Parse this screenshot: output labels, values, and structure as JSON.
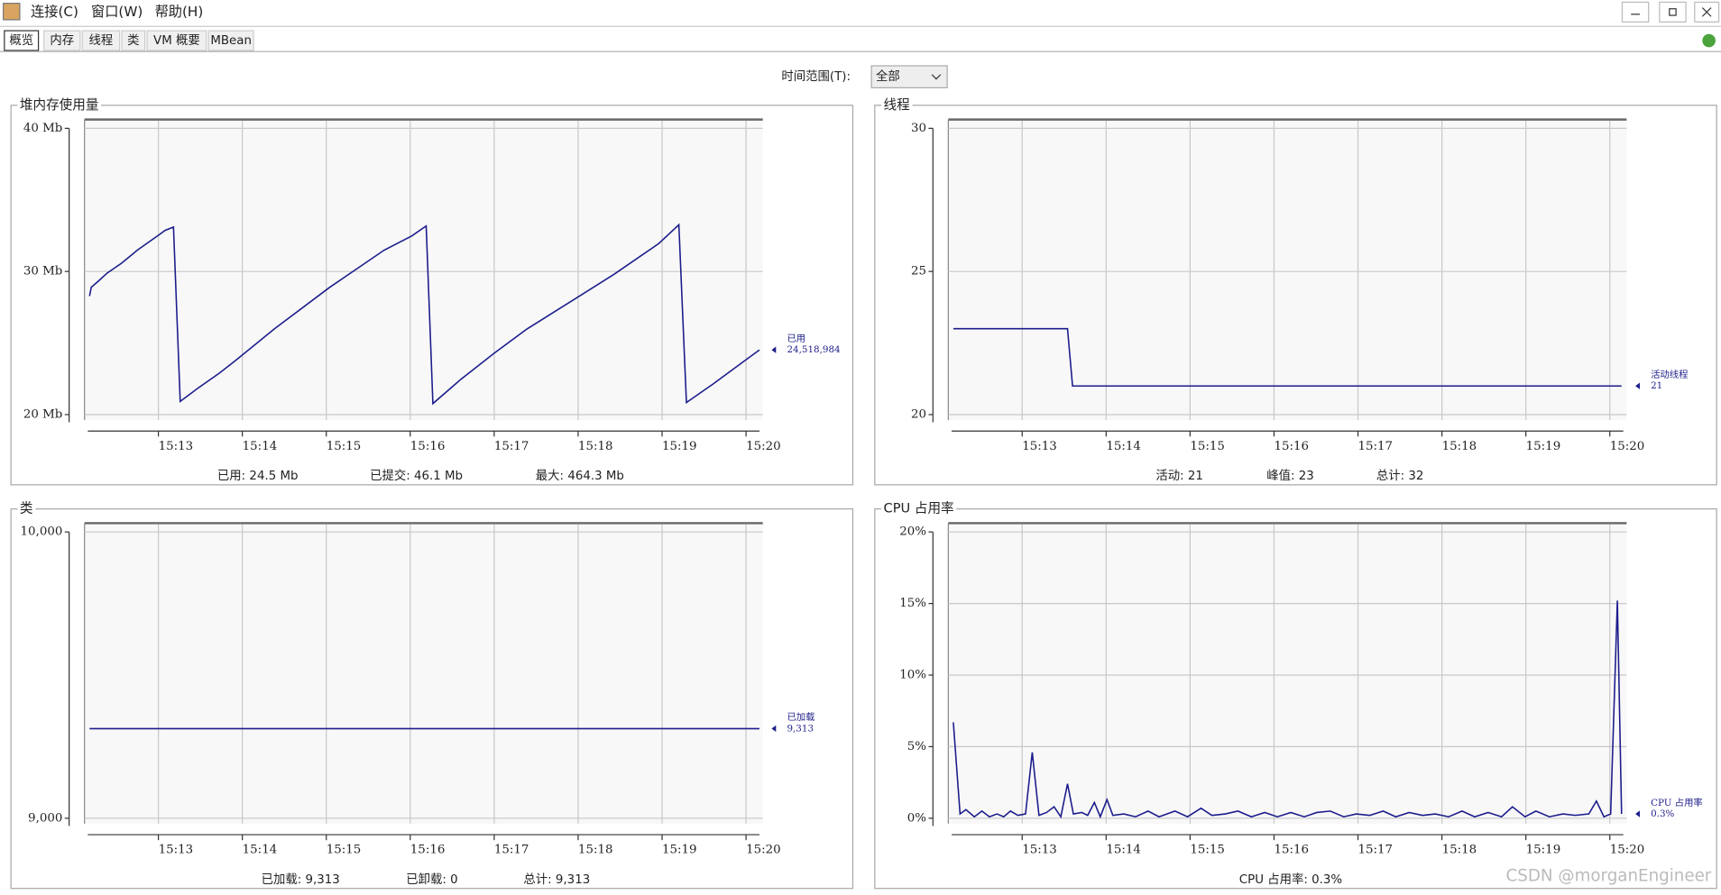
{
  "menu": [
    "连接(C)",
    "窗口(W)",
    "帮助(H)"
  ],
  "tabs": [
    "概览",
    "内存",
    "线程",
    "类",
    "VM 概要",
    "MBean"
  ],
  "time_range": {
    "label": "时间范围(T):",
    "value": "全部"
  },
  "watermark": "CSDN @morganEngineer",
  "chart_data": [
    {
      "type": "line",
      "title": "堆内存使用量",
      "xlim": [
        912.12,
        920.2
      ],
      "xticks": [
        {
          "value": 913,
          "label": "15:13"
        },
        {
          "value": 914,
          "label": "15:14"
        },
        {
          "value": 915,
          "label": "15:15"
        },
        {
          "value": 916,
          "label": "15:16"
        },
        {
          "value": 917,
          "label": "15:17"
        },
        {
          "value": 918,
          "label": "15:18"
        },
        {
          "value": 919,
          "label": "15:19"
        },
        {
          "value": 920,
          "label": "15:20"
        }
      ],
      "ylim": [
        20,
        40
      ],
      "yticks": [
        {
          "value": 20,
          "label": "20 Mb"
        },
        {
          "value": 30,
          "label": "30 Mb"
        },
        {
          "value": 40,
          "label": "40 Mb"
        }
      ],
      "grid": true,
      "series": [
        {
          "name": "已用",
          "current_label": "24,518,984",
          "color": "#1c1c8c",
          "x": [
            912.18,
            912.2,
            912.29,
            912.39,
            912.56,
            912.75,
            913.01,
            913.08,
            913.18,
            913.26,
            913.47,
            913.73,
            913.93,
            914.38,
            915.04,
            915.69,
            916.02,
            916.19,
            916.27,
            916.6,
            917.0,
            917.39,
            917.91,
            918.43,
            918.96,
            919.2,
            919.29,
            919.61,
            920.0,
            920.16
          ],
          "values": [
            28.28,
            28.89,
            29.35,
            29.89,
            30.57,
            31.49,
            32.57,
            32.87,
            33.1,
            20.92,
            21.84,
            22.91,
            23.83,
            25.98,
            28.89,
            31.49,
            32.49,
            33.18,
            20.77,
            22.45,
            24.29,
            25.98,
            27.89,
            29.81,
            31.95,
            33.26,
            20.84,
            22.15,
            23.83,
            24.52
          ]
        }
      ],
      "summary": [
        "已用:  24.5  Mb",
        "已提交:  46.1  Mb",
        "最大:  464.3  Mb"
      ]
    },
    {
      "type": "line",
      "title": "线程",
      "xlim": [
        912.12,
        920.2
      ],
      "xticks": [
        {
          "value": 913,
          "label": "15:13"
        },
        {
          "value": 914,
          "label": "15:14"
        },
        {
          "value": 915,
          "label": "15:15"
        },
        {
          "value": 916,
          "label": "15:16"
        },
        {
          "value": 917,
          "label": "15:17"
        },
        {
          "value": 918,
          "label": "15:18"
        },
        {
          "value": 919,
          "label": "15:19"
        },
        {
          "value": 920,
          "label": "15:20"
        }
      ],
      "ylim": [
        20,
        30
      ],
      "yticks": [
        20,
        25,
        30
      ],
      "grid": true,
      "series": [
        {
          "name": "活动线程",
          "current_label": "21",
          "color": "#1c1c8c",
          "x": [
            912.18,
            913.54,
            913.6,
            920.14
          ],
          "values": [
            23,
            23,
            21,
            21
          ]
        }
      ],
      "summary": [
        "活动:  21",
        "峰值:  23",
        "总计:  32"
      ]
    },
    {
      "type": "line",
      "title": "类",
      "xlim": [
        912.12,
        920.2
      ],
      "xticks": [
        {
          "value": 913,
          "label": "15:13"
        },
        {
          "value": 914,
          "label": "15:14"
        },
        {
          "value": 915,
          "label": "15:15"
        },
        {
          "value": 916,
          "label": "15:16"
        },
        {
          "value": 917,
          "label": "15:17"
        },
        {
          "value": 918,
          "label": "15:18"
        },
        {
          "value": 919,
          "label": "15:19"
        },
        {
          "value": 920,
          "label": "15:20"
        }
      ],
      "ylim": [
        9000,
        10000
      ],
      "yticks": [
        {
          "value": 9000,
          "label": "9,000"
        },
        {
          "value": 10000,
          "label": "10,000"
        }
      ],
      "grid": true,
      "series": [
        {
          "name": "已加载",
          "current_label": "9,313",
          "color": "#1c1c8c",
          "x": [
            912.18,
            920.16
          ],
          "values": [
            9313,
            9313
          ]
        }
      ],
      "summary": [
        "已加载:  9,313",
        "已卸载:  0",
        "总计:  9,313"
      ]
    },
    {
      "type": "line",
      "title": "CPU 占用率",
      "xlim": [
        912.12,
        920.2
      ],
      "xticks": [
        {
          "value": 913,
          "label": "15:13"
        },
        {
          "value": 914,
          "label": "15:14"
        },
        {
          "value": 915,
          "label": "15:15"
        },
        {
          "value": 916,
          "label": "15:16"
        },
        {
          "value": 917,
          "label": "15:17"
        },
        {
          "value": 918,
          "label": "15:18"
        },
        {
          "value": 919,
          "label": "15:19"
        },
        {
          "value": 920,
          "label": "15:20"
        }
      ],
      "ylim": [
        0,
        20
      ],
      "yticks": [
        {
          "value": 0,
          "label": "0%"
        },
        {
          "value": 5,
          "label": "5%"
        },
        {
          "value": 10,
          "label": "10%"
        },
        {
          "value": 15,
          "label": "15%"
        },
        {
          "value": 20,
          "label": "20%"
        }
      ],
      "grid": true,
      "series": [
        {
          "name": "CPU 占用率",
          "current_label": "0.3%",
          "color": "#1c1c8c",
          "x": [
            912.18,
            912.26,
            912.33,
            912.43,
            912.52,
            912.61,
            912.7,
            912.78,
            912.86,
            912.95,
            913.04,
            913.12,
            913.2,
            913.29,
            913.38,
            913.46,
            913.54,
            913.61,
            913.71,
            913.78,
            913.86,
            913.93,
            914.01,
            914.08,
            914.21,
            914.35,
            914.5,
            914.63,
            914.82,
            914.97,
            915.13,
            915.26,
            915.42,
            915.57,
            915.73,
            915.89,
            916.04,
            916.2,
            916.36,
            916.51,
            916.67,
            916.83,
            916.98,
            917.14,
            917.3,
            917.45,
            917.61,
            917.77,
            917.92,
            918.08,
            918.24,
            918.39,
            918.55,
            918.71,
            918.84,
            918.99,
            919.12,
            919.28,
            919.44,
            919.59,
            919.75,
            919.84,
            919.93,
            920.01,
            920.09,
            920.14
          ],
          "values": [
            6.7,
            0.3,
            0.6,
            0.1,
            0.5,
            0.1,
            0.3,
            0.1,
            0.5,
            0.2,
            0.3,
            4.6,
            0.2,
            0.4,
            0.8,
            0.1,
            2.4,
            0.3,
            0.4,
            0.2,
            1.1,
            0.1,
            1.3,
            0.2,
            0.3,
            0.1,
            0.5,
            0.1,
            0.5,
            0.1,
            0.7,
            0.2,
            0.3,
            0.5,
            0.1,
            0.4,
            0.1,
            0.4,
            0.1,
            0.4,
            0.5,
            0.1,
            0.3,
            0.2,
            0.5,
            0.1,
            0.4,
            0.2,
            0.3,
            0.1,
            0.5,
            0.1,
            0.4,
            0.1,
            0.8,
            0.1,
            0.5,
            0.1,
            0.3,
            0.2,
            0.3,
            1.2,
            0.1,
            0.3,
            15.2,
            0.3
          ]
        }
      ],
      "summary": [
        "CPU 占用率:  0.3%"
      ]
    }
  ]
}
